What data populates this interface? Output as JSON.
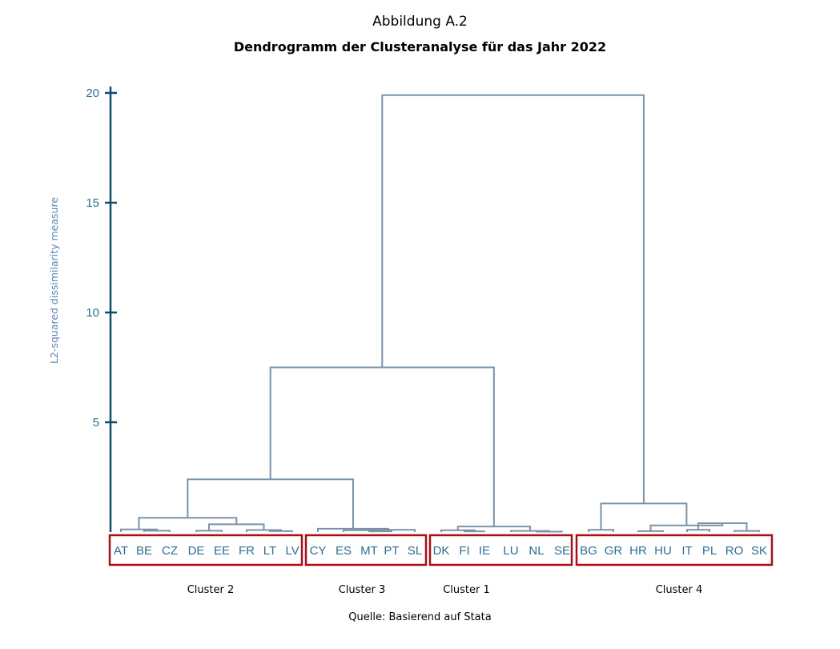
{
  "figure_label": "Abbildung A.2",
  "title": "Dendrogramm der Clusteranalyse für das Jahr 2022",
  "source": "Quelle: Basierend auf Stata",
  "chart_data": {
    "type": "dendrogram",
    "ylabel": "L2-squared dissimilarity measure",
    "ylim": [
      0,
      20
    ],
    "yticks": [
      5,
      10,
      15,
      20
    ],
    "leaves": [
      "AT",
      "BE",
      "CZ",
      "DE",
      "EE",
      "FR",
      "LT",
      "LV",
      "CY",
      "ES",
      "MT",
      "PT",
      "SL",
      "DK",
      "FI",
      "IE",
      "LU",
      "NL",
      "SE",
      "BG",
      "GR",
      "HR",
      "HU",
      "IT",
      "PL",
      "RO",
      "SK"
    ],
    "merges": [
      {
        "a": "BE",
        "b": "CZ",
        "h": 0.06
      },
      {
        "a": "AT",
        "b": "BE+CZ",
        "h": 0.12
      },
      {
        "a": "DE",
        "b": "EE",
        "h": 0.06
      },
      {
        "a": "LT",
        "b": "LV",
        "h": 0.04
      },
      {
        "a": "FR",
        "b": "LT+LV",
        "h": 0.09
      },
      {
        "a": "DE+EE",
        "b": "FR+LT+LV",
        "h": 0.35
      },
      {
        "a": "AT+BE+CZ",
        "b": "DE+EE+FR+LT+LV",
        "h": 0.65
      },
      {
        "a": "MT",
        "b": "PT",
        "h": 0.03
      },
      {
        "a": "ES",
        "b": "MT+PT",
        "h": 0.08
      },
      {
        "a": "ES+MT+PT",
        "b": "SL",
        "h": 0.1
      },
      {
        "a": "CY",
        "b": "ES+MT+PT+SL",
        "h": 0.15
      },
      {
        "a": "AT+BE+CZ+DE+EE+FR+LT+LV",
        "b": "CY+ES+MT+PT+SL",
        "h": 2.4
      },
      {
        "a": "FI",
        "b": "IE",
        "h": 0.03
      },
      {
        "a": "DK",
        "b": "FI+IE",
        "h": 0.08
      },
      {
        "a": "NL",
        "b": "SE",
        "h": 0.02
      },
      {
        "a": "LU",
        "b": "NL+SE",
        "h": 0.05
      },
      {
        "a": "DK+FI+IE",
        "b": "LU+NL+SE",
        "h": 0.25
      },
      {
        "a": "AT+BE+CZ+DE+EE+FR+LT+LV+CY+ES+MT+PT+SL",
        "b": "DK+FI+IE+LU+NL+SE",
        "h": 7.5
      },
      {
        "a": "BG",
        "b": "GR",
        "h": 0.1
      },
      {
        "a": "HR",
        "b": "HU",
        "h": 0.04
      },
      {
        "a": "IT",
        "b": "PL",
        "h": 0.1
      },
      {
        "a": "RO",
        "b": "SK",
        "h": 0.05
      },
      {
        "a": "IT+PL",
        "b": "RO+SK",
        "h": 0.4
      },
      {
        "a": "HR+HU",
        "b": "IT+PL+RO+SK",
        "h": 0.3
      },
      {
        "a": "BG+GR",
        "b": "HR+HU+IT+PL+RO+SK",
        "h": 1.3
      },
      {
        "a": "AT+BE+CZ+DE+EE+FR+LT+LV+CY+ES+MT+PT+SL+DK+FI+IE+LU+NL+SE",
        "b": "BG+GR+HR+HU+IT+PL+RO+SK",
        "h": 19.9
      }
    ],
    "clusters": [
      {
        "name": "Cluster 2",
        "first": "AT",
        "last": "LV"
      },
      {
        "name": "Cluster 3",
        "first": "CY",
        "last": "SL"
      },
      {
        "name": "Cluster 1",
        "first": "DK",
        "last": "SE"
      },
      {
        "name": "Cluster 4",
        "first": "BG",
        "last": "SK"
      }
    ],
    "colors": {
      "axis": "#0d4d6b",
      "tick_label": "#2a6f91",
      "ylabel": "#5b87b5",
      "link": "#7a93a8",
      "box": "#a80f16"
    }
  }
}
